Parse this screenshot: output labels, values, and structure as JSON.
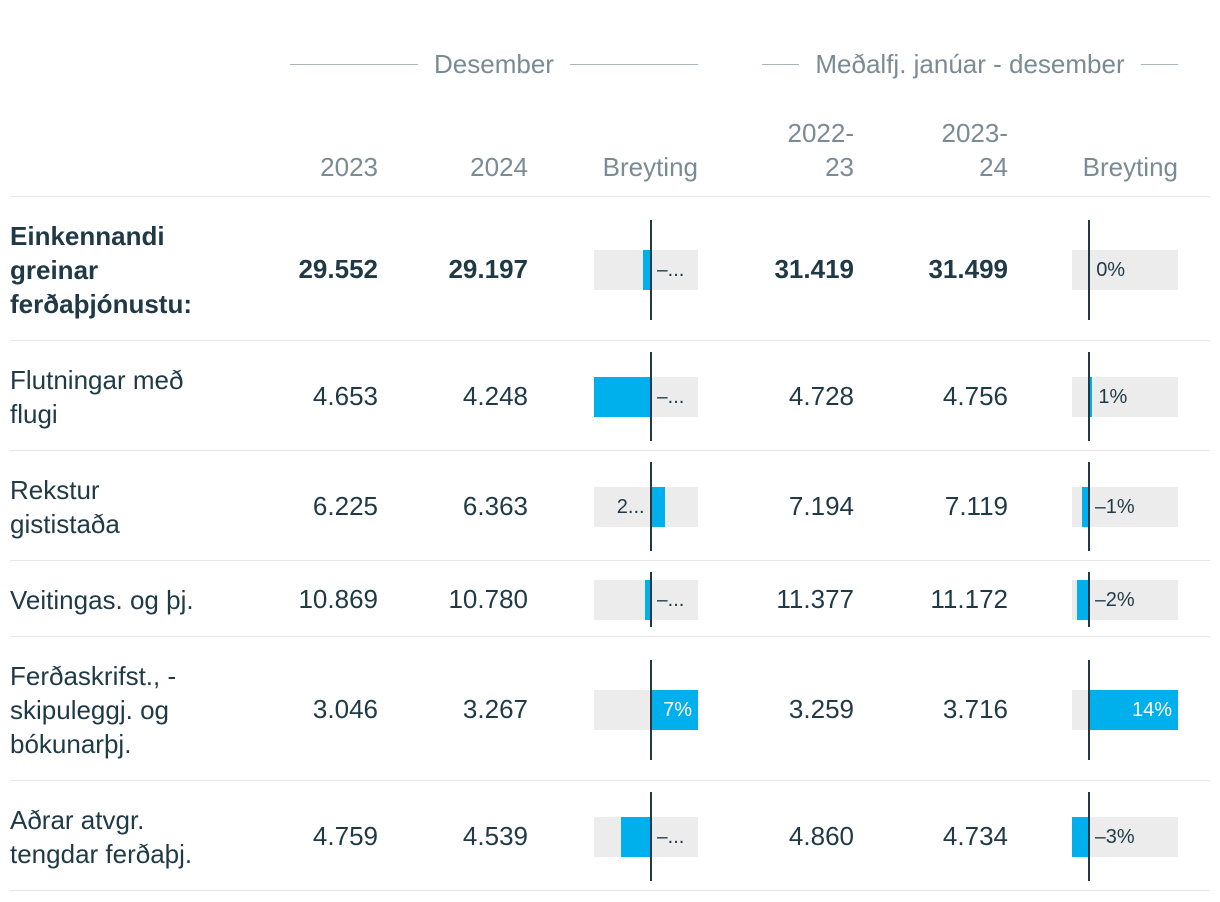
{
  "header": {
    "group1": "Desember",
    "group2": "Meðalfj. janúar - desember",
    "columns": [
      "2023",
      "2024",
      "Breyting",
      "2022-23",
      "2023-24",
      "Breyting"
    ]
  },
  "chart_data": {
    "type": "table",
    "columns": [
      "2023",
      "2024",
      "Breyting",
      "2022-23",
      "2023-24",
      "Breyting"
    ],
    "rows": [
      {
        "label": "Einkennandi greinar ferðaþjónustu:",
        "bold": true,
        "v1": "29.552",
        "v2": "29.197",
        "c1": -1.2,
        "c1_label": "–...",
        "v3": "31.419",
        "v4": "31.499",
        "c2": 0.25,
        "c2_label": "0%"
      },
      {
        "label": "Flutningar með flugi",
        "bold": false,
        "v1": "4.653",
        "v2": "4.248",
        "c1": -8.7,
        "c1_label": "–...",
        "v3": "4.728",
        "v4": "4.756",
        "c2": 0.6,
        "c2_label": "1%"
      },
      {
        "label": "Rekstur gististaða",
        "bold": false,
        "v1": "6.225",
        "v2": "6.363",
        "c1": 2.2,
        "c1_label": "2...",
        "v3": "7.194",
        "v4": "7.119",
        "c2": -1.0,
        "c2_label": "–1%"
      },
      {
        "label": "Veitingas. og þj.",
        "bold": false,
        "v1": "10.869",
        "v2": "10.780",
        "c1": -0.8,
        "c1_label": "–...",
        "v3": "11.377",
        "v4": "11.172",
        "c2": -1.8,
        "c2_label": "–2%"
      },
      {
        "label": "Ferðaskrifst., -skipuleggj. og bókunarþj.",
        "bold": false,
        "v1": "3.046",
        "v2": "3.267",
        "c1": 7.3,
        "c1_label": "7%",
        "v3": "3.259",
        "v4": "3.716",
        "c2": 14.0,
        "c2_label": "14%"
      },
      {
        "label": "Aðrar atvgr. tengdar ferðaþj.",
        "bold": false,
        "v1": "4.759",
        "v2": "4.539",
        "c1": -4.6,
        "c1_label": "–...",
        "v3": "4.860",
        "v4": "4.734",
        "c2": -2.6,
        "c2_label": "–3%"
      }
    ],
    "change_scale": {
      "c1": {
        "min": -8.7,
        "max": 7.3
      },
      "c2": {
        "min": -2.6,
        "max": 14.0
      }
    },
    "colors": {
      "bar": "#00b0ec",
      "track": "#ececec",
      "text": "#1f3a46",
      "muted": "#7b8b94"
    }
  }
}
